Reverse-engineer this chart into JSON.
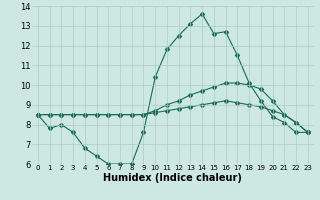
{
  "xlabel": "Humidex (Indice chaleur)",
  "bg_color": "#cce8e0",
  "grid_color": "#aaccc4",
  "line_color": "#1a6b5a",
  "xlim": [
    -0.5,
    23.5
  ],
  "ylim": [
    6,
    14
  ],
  "xticks": [
    0,
    1,
    2,
    3,
    4,
    5,
    6,
    7,
    8,
    9,
    10,
    11,
    12,
    13,
    14,
    15,
    16,
    17,
    18,
    19,
    20,
    21,
    22,
    23
  ],
  "yticks": [
    6,
    7,
    8,
    9,
    10,
    11,
    12,
    13,
    14
  ],
  "line1_y": [
    8.5,
    7.8,
    8.0,
    7.6,
    6.8,
    6.4,
    6.0,
    6.0,
    6.0,
    7.6,
    10.4,
    11.8,
    12.5,
    13.1,
    13.6,
    12.6,
    12.7,
    11.5,
    10.1,
    9.2,
    8.4,
    8.1,
    7.6,
    7.6
  ],
  "line2_y": [
    8.5,
    8.5,
    8.5,
    8.5,
    8.5,
    8.5,
    8.5,
    8.5,
    8.5,
    8.5,
    8.7,
    9.0,
    9.2,
    9.5,
    9.7,
    9.9,
    10.1,
    10.1,
    10.0,
    9.8,
    9.2,
    8.5,
    8.1,
    7.6
  ],
  "line3_y": [
    8.5,
    8.5,
    8.5,
    8.5,
    8.5,
    8.5,
    8.5,
    8.5,
    8.5,
    8.5,
    8.6,
    8.7,
    8.8,
    8.9,
    9.0,
    9.1,
    9.2,
    9.1,
    9.0,
    8.9,
    8.7,
    8.5,
    8.1,
    7.6
  ],
  "xlabel_fontsize": 7,
  "tick_fontsize_x": 5,
  "tick_fontsize_y": 6
}
